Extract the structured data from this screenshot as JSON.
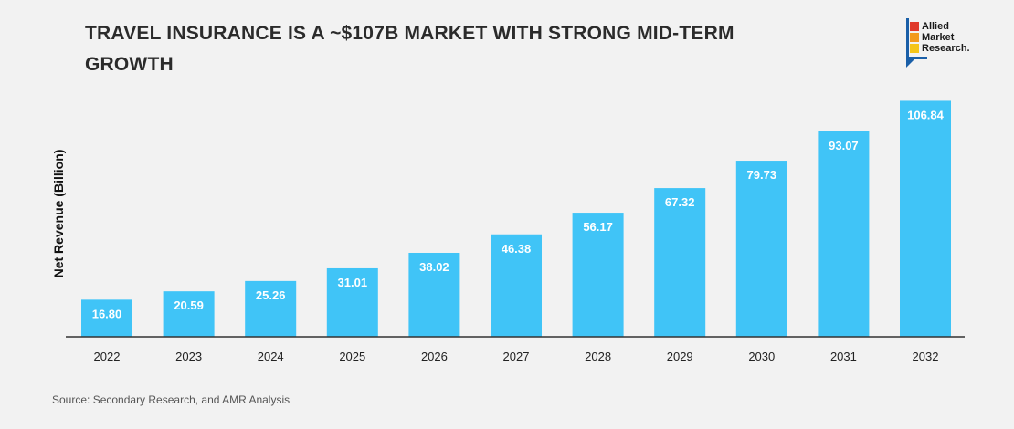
{
  "title": "TRAVEL INSURANCE IS A ~$107B MARKET WITH STRONG MID-TERM GROWTH",
  "logo": {
    "lines": [
      "Allied",
      "Market",
      "Research."
    ],
    "colors": [
      "#e0392b",
      "#f29a1e",
      "#f5c518"
    ],
    "frame_color": "#1a5fa8"
  },
  "source": "Source: Secondary Research, and AMR Analysis",
  "chart_data": {
    "type": "bar",
    "categories": [
      "2022",
      "2023",
      "2024",
      "2025",
      "2026",
      "2027",
      "2028",
      "2029",
      "2030",
      "2031",
      "2032"
    ],
    "values": [
      16.8,
      20.59,
      25.26,
      31.01,
      38.02,
      46.38,
      56.17,
      67.32,
      79.73,
      93.07,
      106.84
    ],
    "value_labels": [
      "16.80",
      "20.59",
      "25.26",
      "31.01",
      "38.02",
      "46.38",
      "56.17",
      "67.32",
      "79.73",
      "93.07",
      "106.84"
    ],
    "ylabel": "Net Revenue (Billion)",
    "xlabel": "",
    "ylim": [
      0,
      115
    ],
    "grid": false,
    "legend": "none",
    "bar_color": "#40c4f7"
  }
}
